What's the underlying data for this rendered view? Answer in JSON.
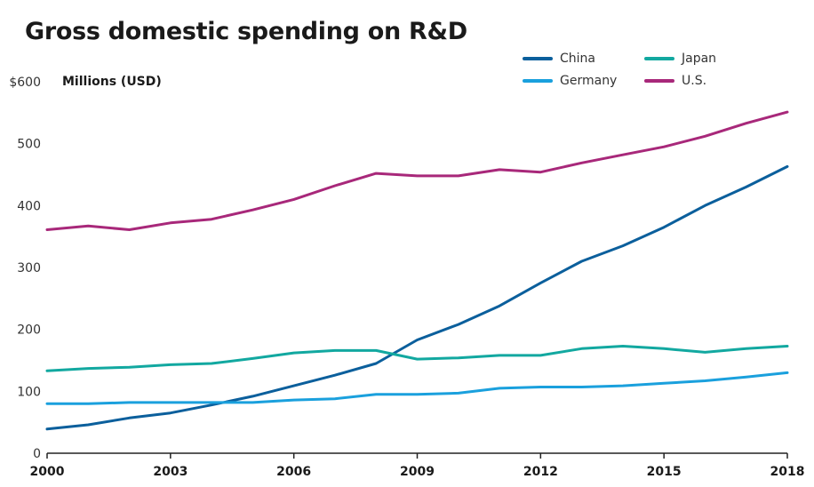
{
  "chart_data": {
    "type": "line",
    "title": "Gross domestic spending on R&D",
    "ylabel": "Millions (USD)",
    "xlabel": "",
    "ylim": [
      0,
      600
    ],
    "xlim": [
      2000,
      2018
    ],
    "y_ticks": [
      0,
      100,
      200,
      300,
      400,
      500,
      600
    ],
    "y_tick_labels": [
      "0",
      "100",
      "200",
      "300",
      "400",
      "500",
      "$600"
    ],
    "x_ticks": [
      2000,
      2003,
      2006,
      2009,
      2012,
      2015,
      2018
    ],
    "x_tick_labels": [
      "2000",
      "2003",
      "2006",
      "2009",
      "2012",
      "2015",
      "2018"
    ],
    "grid": false,
    "legend_position": "top-right",
    "x": [
      2000,
      2001,
      2002,
      2003,
      2004,
      2005,
      2006,
      2007,
      2008,
      2009,
      2010,
      2011,
      2012,
      2013,
      2014,
      2015,
      2016,
      2017,
      2018
    ],
    "series": [
      {
        "name": "China",
        "color": "#0b5f9c",
        "values": [
          39,
          46,
          57,
          65,
          78,
          92,
          109,
          126,
          145,
          183,
          208,
          238,
          275,
          310,
          335,
          365,
          400,
          430,
          463
        ]
      },
      {
        "name": "Germany",
        "color": "#1aa0dd",
        "values": [
          80,
          80,
          82,
          82,
          82,
          82,
          86,
          88,
          95,
          95,
          97,
          105,
          107,
          107,
          109,
          113,
          117,
          123,
          130
        ]
      },
      {
        "name": "Japan",
        "color": "#12a8a0",
        "values": [
          133,
          137,
          139,
          143,
          145,
          153,
          162,
          166,
          166,
          152,
          154,
          158,
          158,
          169,
          173,
          169,
          163,
          169,
          173
        ]
      },
      {
        "name": "U.S.",
        "color": "#a8287a",
        "values": [
          361,
          367,
          361,
          372,
          378,
          393,
          410,
          432,
          452,
          448,
          448,
          458,
          454,
          469,
          482,
          495,
          512,
          533,
          551
        ]
      }
    ]
  },
  "legend_layout": [
    {
      "series_index": 0
    },
    {
      "series_index": 2
    },
    {
      "series_index": 1
    },
    {
      "series_index": 3
    }
  ]
}
